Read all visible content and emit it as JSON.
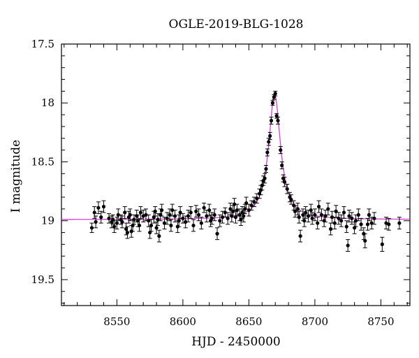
{
  "chart_data": {
    "type": "scatter",
    "title": "OGLE-2019-BLG-1028",
    "xlabel": "HJD - 2450000",
    "ylabel": "I magnitude",
    "xlim": [
      8508,
      8772
    ],
    "ylim": [
      19.72,
      17.5
    ],
    "y_inverted": true,
    "grid": false,
    "x_ticks": [
      8550,
      8600,
      8650,
      8700,
      8750
    ],
    "y_ticks": [
      17.5,
      18,
      18.5,
      19,
      19.5
    ],
    "colors": {
      "data": "#000000",
      "model": "#d63cd6",
      "axes": "#000000"
    },
    "model": {
      "t0": 8669.5,
      "baseline": 18.99,
      "peak": 17.93,
      "tE": 5.5
    },
    "series": [
      {
        "kind": "points_with_errorbars",
        "points": [
          [
            8531,
            19.06,
            0.04
          ],
          [
            8533,
            18.93,
            0.05
          ],
          [
            8534,
            19.01,
            0.05
          ],
          [
            8536,
            18.89,
            0.05
          ],
          [
            8538,
            18.97,
            0.05
          ],
          [
            8540,
            18.88,
            0.05
          ],
          [
            8544,
            18.98,
            0.04
          ],
          [
            8546,
            19.01,
            0.05
          ],
          [
            8547,
            18.99,
            0.04
          ],
          [
            8548,
            19.05,
            0.05
          ],
          [
            8550,
            19.02,
            0.05
          ],
          [
            8551,
            18.95,
            0.05
          ],
          [
            8553,
            18.99,
            0.04
          ],
          [
            8554,
            19.01,
            0.05
          ],
          [
            8556,
            18.93,
            0.05
          ],
          [
            8557,
            19.07,
            0.05
          ],
          [
            8558,
            19.1,
            0.05
          ],
          [
            8559,
            18.97,
            0.05
          ],
          [
            8560,
            18.95,
            0.05
          ],
          [
            8561,
            19.09,
            0.05
          ],
          [
            8562,
            19.04,
            0.05
          ],
          [
            8563,
            18.99,
            0.04
          ],
          [
            8565,
            18.96,
            0.05
          ],
          [
            8566,
            19.0,
            0.05
          ],
          [
            8567,
            19.04,
            0.05
          ],
          [
            8568,
            18.93,
            0.05
          ],
          [
            8570,
            18.96,
            0.05
          ],
          [
            8572,
            18.95,
            0.05
          ],
          [
            8574,
            19.0,
            0.05
          ],
          [
            8575,
            19.1,
            0.05
          ],
          [
            8576,
            19.04,
            0.05
          ],
          [
            8578,
            18.97,
            0.05
          ],
          [
            8579,
            18.92,
            0.04
          ],
          [
            8580,
            19.06,
            0.05
          ],
          [
            8581,
            18.99,
            0.05
          ],
          [
            8582,
            19.13,
            0.05
          ],
          [
            8583,
            18.95,
            0.05
          ],
          [
            8584,
            18.91,
            0.05
          ],
          [
            8586,
            19.02,
            0.05
          ],
          [
            8588,
            18.98,
            0.05
          ],
          [
            8590,
            18.95,
            0.05
          ],
          [
            8591,
            19.04,
            0.05
          ],
          [
            8592,
            18.91,
            0.05
          ],
          [
            8594,
            18.96,
            0.05
          ],
          [
            8596,
            19.05,
            0.05
          ],
          [
            8597,
            19.0,
            0.05
          ],
          [
            8598,
            18.93,
            0.05
          ],
          [
            8600,
            18.98,
            0.04
          ],
          [
            8602,
            19.01,
            0.05
          ],
          [
            8604,
            18.96,
            0.05
          ],
          [
            8606,
            18.93,
            0.05
          ],
          [
            8608,
            19.04,
            0.05
          ],
          [
            8610,
            18.92,
            0.05
          ],
          [
            8612,
            18.95,
            0.05
          ],
          [
            8614,
            19.02,
            0.05
          ],
          [
            8616,
            18.89,
            0.04
          ],
          [
            8618,
            18.96,
            0.05
          ],
          [
            8620,
            18.91,
            0.05
          ],
          [
            8621,
            19.0,
            0.05
          ],
          [
            8622,
            18.98,
            0.05
          ],
          [
            8624,
            18.95,
            0.05
          ],
          [
            8626,
            19.11,
            0.05
          ],
          [
            8628,
            19.0,
            0.05
          ],
          [
            8630,
            18.97,
            0.05
          ],
          [
            8632,
            18.93,
            0.04
          ],
          [
            8634,
            18.98,
            0.05
          ],
          [
            8636,
            18.9,
            0.05
          ],
          [
            8637,
            18.96,
            0.05
          ],
          [
            8638,
            18.92,
            0.05
          ],
          [
            8639,
            18.86,
            0.05
          ],
          [
            8640,
            18.97,
            0.05
          ],
          [
            8641,
            18.91,
            0.05
          ],
          [
            8643,
            18.95,
            0.05
          ],
          [
            8644,
            18.99,
            0.05
          ],
          [
            8645,
            18.93,
            0.05
          ],
          [
            8646,
            18.96,
            0.05
          ],
          [
            8647,
            18.9,
            0.04
          ],
          [
            8648,
            18.85,
            0.05
          ],
          [
            8650,
            18.91,
            0.05
          ],
          [
            8652,
            18.87,
            0.04
          ],
          [
            8654,
            18.84,
            0.04
          ],
          [
            8656,
            18.81,
            0.04
          ],
          [
            8658,
            18.77,
            0.04
          ],
          [
            8659,
            18.74,
            0.04
          ],
          [
            8660,
            18.7,
            0.04
          ],
          [
            8661,
            18.66,
            0.04
          ],
          [
            8662,
            18.64,
            0.04
          ],
          [
            8663,
            18.56,
            0.03
          ],
          [
            8664,
            18.42,
            0.03
          ],
          [
            8665,
            18.33,
            0.03
          ],
          [
            8666,
            18.28,
            0.03
          ],
          [
            8667,
            18.15,
            0.03
          ],
          [
            8668,
            18.0,
            0.02
          ],
          [
            8669,
            17.95,
            0.02
          ],
          [
            8670,
            17.92,
            0.02
          ],
          [
            8671,
            18.11,
            0.02
          ],
          [
            8672,
            18.15,
            0.03
          ],
          [
            8674,
            18.4,
            0.03
          ],
          [
            8675,
            18.53,
            0.03
          ],
          [
            8676,
            18.64,
            0.03
          ],
          [
            8677,
            18.67,
            0.04
          ],
          [
            8679,
            18.73,
            0.04
          ],
          [
            8681,
            18.8,
            0.04
          ],
          [
            8682,
            18.82,
            0.04
          ],
          [
            8684,
            18.87,
            0.04
          ],
          [
            8685,
            18.92,
            0.05
          ],
          [
            8687,
            18.9,
            0.05
          ],
          [
            8688,
            18.97,
            0.05
          ],
          [
            8689,
            19.13,
            0.05
          ],
          [
            8691,
            18.95,
            0.05
          ],
          [
            8692,
            19.0,
            0.05
          ],
          [
            8693,
            18.93,
            0.05
          ],
          [
            8695,
            18.96,
            0.05
          ],
          [
            8697,
            18.91,
            0.05
          ],
          [
            8698,
            18.98,
            0.05
          ],
          [
            8700,
            18.95,
            0.05
          ],
          [
            8702,
            19.02,
            0.05
          ],
          [
            8703,
            18.88,
            0.05
          ],
          [
            8705,
            18.95,
            0.05
          ],
          [
            8707,
            19.0,
            0.05
          ],
          [
            8708,
            18.96,
            0.05
          ],
          [
            8710,
            18.9,
            0.05
          ],
          [
            8712,
            19.07,
            0.05
          ],
          [
            8713,
            18.97,
            0.05
          ],
          [
            8715,
            19.02,
            0.05
          ],
          [
            8716,
            18.92,
            0.05
          ],
          [
            8718,
            18.98,
            0.05
          ],
          [
            8720,
            19.0,
            0.05
          ],
          [
            8722,
            18.93,
            0.05
          ],
          [
            8724,
            19.05,
            0.05
          ],
          [
            8725,
            19.21,
            0.05
          ],
          [
            8726,
            18.96,
            0.05
          ],
          [
            8728,
            18.98,
            0.05
          ],
          [
            8730,
            19.06,
            0.05
          ],
          [
            8731,
            19.0,
            0.05
          ],
          [
            8733,
            18.95,
            0.05
          ],
          [
            8735,
            19.03,
            0.05
          ],
          [
            8737,
            19.11,
            0.05
          ],
          [
            8738,
            19.17,
            0.06
          ],
          [
            8740,
            19.03,
            0.05
          ],
          [
            8741,
            18.95,
            0.05
          ],
          [
            8743,
            19.02,
            0.05
          ],
          [
            8745,
            18.98,
            0.05
          ],
          [
            8751,
            19.2,
            0.06
          ],
          [
            8754,
            19.02,
            0.05
          ],
          [
            8756,
            19.03,
            0.05
          ],
          [
            8764,
            19.02,
            0.05
          ]
        ]
      },
      {
        "kind": "model_curve",
        "color": "#d63cd6"
      }
    ]
  }
}
